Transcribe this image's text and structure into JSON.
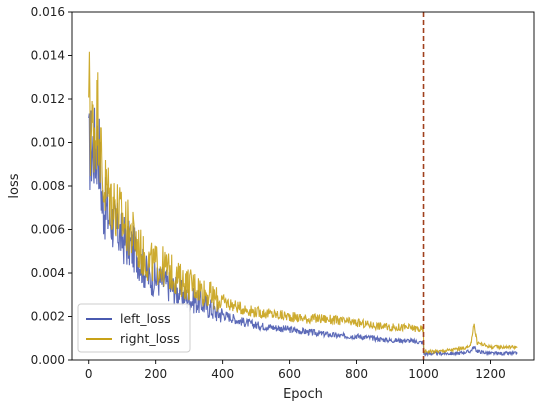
{
  "chart_data": {
    "type": "line",
    "title": "",
    "xlabel": "Epoch",
    "ylabel": "loss",
    "xlim": [
      -50,
      1330
    ],
    "ylim": [
      0,
      0.016
    ],
    "x_ticks": [
      0,
      200,
      400,
      600,
      800,
      1000,
      1200
    ],
    "x_tick_labels": [
      "0",
      "200",
      "400",
      "600",
      "800",
      "1000",
      "1200"
    ],
    "y_ticks": [
      0,
      0.002,
      0.004,
      0.006,
      0.008,
      0.01,
      0.012,
      0.014,
      0.016
    ],
    "y_tick_labels": [
      "0.000",
      "0.002",
      "0.004",
      "0.006",
      "0.008",
      "0.010",
      "0.012",
      "0.014",
      "0.016"
    ],
    "grid": false,
    "legend_position": "lower-left",
    "vline": {
      "x": 1000,
      "color": "#a0401e",
      "style": "dashed"
    },
    "series": [
      {
        "name": "left_loss",
        "color": "#4a5ab0",
        "x": [
          0,
          5,
          10,
          20,
          30,
          40,
          50,
          60,
          70,
          80,
          90,
          100,
          120,
          140,
          160,
          180,
          200,
          220,
          240,
          260,
          280,
          300,
          320,
          340,
          360,
          380,
          400,
          450,
          500,
          550,
          600,
          650,
          700,
          750,
          800,
          850,
          900,
          950,
          999,
          1001,
          1050,
          1100,
          1140,
          1150,
          1160,
          1200,
          1250,
          1280
        ],
        "y": [
          0.0095,
          0.0097,
          0.0098,
          0.0097,
          0.0099,
          0.0072,
          0.0069,
          0.0066,
          0.0064,
          0.0061,
          0.0059,
          0.0056,
          0.0053,
          0.005,
          0.0043,
          0.0038,
          0.0037,
          0.0036,
          0.0034,
          0.0032,
          0.003,
          0.0028,
          0.0027,
          0.0026,
          0.0024,
          0.0022,
          0.0021,
          0.0018,
          0.0016,
          0.0015,
          0.0014,
          0.0013,
          0.0012,
          0.0011,
          0.0011,
          0.001,
          0.0009,
          0.0009,
          0.0008,
          0.0003,
          0.0003,
          0.0003,
          0.0004,
          0.0006,
          0.0004,
          0.0003,
          0.0003,
          0.0003
        ]
      },
      {
        "name": "right_loss",
        "color": "#c8a218",
        "x": [
          0,
          2,
          5,
          10,
          20,
          30,
          40,
          50,
          60,
          70,
          80,
          90,
          100,
          120,
          140,
          160,
          180,
          200,
          220,
          240,
          260,
          280,
          300,
          320,
          340,
          360,
          380,
          400,
          450,
          500,
          550,
          600,
          650,
          700,
          750,
          800,
          850,
          900,
          950,
          999,
          1001,
          1050,
          1100,
          1140,
          1150,
          1160,
          1200,
          1250,
          1280
        ],
        "y": [
          0.0102,
          0.0152,
          0.0102,
          0.0105,
          0.0108,
          0.0115,
          0.0082,
          0.0079,
          0.0076,
          0.0073,
          0.0071,
          0.0068,
          0.0064,
          0.006,
          0.0055,
          0.0048,
          0.0045,
          0.0044,
          0.0043,
          0.0041,
          0.0038,
          0.0036,
          0.0035,
          0.0034,
          0.0032,
          0.003,
          0.0028,
          0.0027,
          0.0024,
          0.0022,
          0.0021,
          0.002,
          0.0019,
          0.0019,
          0.0018,
          0.0017,
          0.0016,
          0.0015,
          0.0015,
          0.0014,
          0.0004,
          0.0004,
          0.0005,
          0.0006,
          0.0017,
          0.0008,
          0.0006,
          0.0006,
          0.0006
        ]
      }
    ]
  }
}
